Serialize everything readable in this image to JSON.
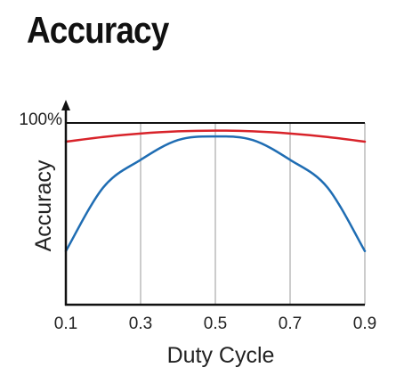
{
  "chart_data": {
    "type": "line",
    "title": "Accuracy",
    "xlabel": "Duty Cycle",
    "ylabel": "Accuracy",
    "x_ticks": [
      "0.1",
      "0.3",
      "0.5",
      "0.7",
      "0.9"
    ],
    "xlim": [
      0.1,
      0.9
    ],
    "y_ticks": [
      {
        "value": 100,
        "label": "100%"
      }
    ],
    "ylim": [
      0,
      105
    ],
    "grid": "vertical",
    "reference_line": 100,
    "series": [
      {
        "color": "#d8232a",
        "x": [
          0.1,
          0.2,
          0.3,
          0.4,
          0.5,
          0.6,
          0.7,
          0.8,
          0.9
        ],
        "y": [
          89.7,
          92.3,
          94.2,
          95.4,
          95.8,
          95.4,
          94.2,
          92.3,
          89.7
        ]
      },
      {
        "color": "#1f6db3",
        "x": [
          0.1,
          0.2,
          0.3,
          0.4,
          0.5,
          0.6,
          0.7,
          0.8,
          0.9
        ],
        "y": [
          29.5,
          64.5,
          79.7,
          90.6,
          92.6,
          90.6,
          79.7,
          64.5,
          29.5
        ]
      }
    ]
  }
}
